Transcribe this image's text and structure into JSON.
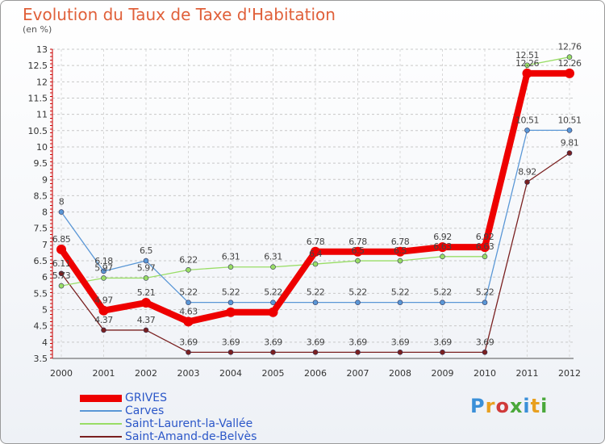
{
  "title": "Evolution du Taux de Taxe d'Habitation",
  "subtitle": "(en %)",
  "logo_text": "Proxiti",
  "logo_colors": [
    "#3a8fd8",
    "#e8a020",
    "#d03a3a",
    "#4aa83a",
    "#3a8fd8",
    "#e8a020",
    "#4aa83a"
  ],
  "chart_data": {
    "type": "line",
    "x": [
      "2000",
      "2001",
      "2002",
      "2003",
      "2004",
      "2005",
      "2006",
      "2007",
      "2008",
      "2009",
      "2010",
      "2011",
      "2012"
    ],
    "ylim": [
      3.5,
      13
    ],
    "yticks": [
      "3.5",
      "4",
      "4.5",
      "5",
      "5.5",
      "6",
      "6.5",
      "7",
      "7.5",
      "8",
      "8.5",
      "9",
      "9.5",
      "10",
      "10.5",
      "11",
      "11.5",
      "12",
      "12.5",
      "13"
    ],
    "grid": "horizontal dashed",
    "legend_position": "bottom-left",
    "series": [
      {
        "name": "GRIVES",
        "color": "#ee0000",
        "values": [
          6.85,
          4.97,
          5.21,
          4.63,
          4.92,
          4.92,
          6.78,
          6.78,
          6.78,
          6.92,
          6.92,
          12.26,
          12.26
        ],
        "labels": [
          "6.85",
          "4.97",
          "5.21",
          "4.63",
          "",
          "",
          "6.78",
          "6.78",
          "6.78",
          "6.92",
          "6.92",
          "12.26",
          "12.26"
        ]
      },
      {
        "name": "Carves",
        "color": "#5a97d6",
        "values": [
          8,
          6.18,
          6.5,
          5.22,
          5.22,
          5.22,
          5.22,
          5.22,
          5.22,
          5.22,
          5.22,
          10.51,
          10.51
        ],
        "labels": [
          "8",
          "6.18",
          "6.5",
          "5.22",
          "5.22",
          "5.22",
          "5.22",
          "5.22",
          "5.22",
          "5.22",
          "5.22",
          "10.51",
          "10.51"
        ]
      },
      {
        "name": "Saint-Laurent-la-Vallée",
        "color": "#99dd66",
        "values": [
          5.73,
          5.97,
          5.97,
          6.22,
          6.31,
          6.31,
          6.4,
          6.5,
          6.5,
          6.63,
          6.63,
          12.51,
          12.76
        ],
        "labels": [
          "5.73",
          "5.97",
          "5.97",
          "6.22",
          "6.31",
          "6.31",
          "6.4",
          "6.5",
          "6.5",
          "6.63",
          "6.63",
          "12.51",
          "12.76"
        ]
      },
      {
        "name": "Saint-Amand-de-Belvès",
        "color": "#7a2020",
        "values": [
          6.11,
          4.37,
          4.37,
          3.69,
          3.69,
          3.69,
          3.69,
          3.69,
          3.69,
          3.69,
          3.69,
          8.92,
          9.81
        ],
        "labels": [
          "6.11",
          "4.37",
          "4.37",
          "3.69",
          "3.69",
          "3.69",
          "3.69",
          "3.69",
          "3.69",
          "3.69",
          "3.69",
          "8.92",
          "9.81"
        ]
      }
    ]
  }
}
